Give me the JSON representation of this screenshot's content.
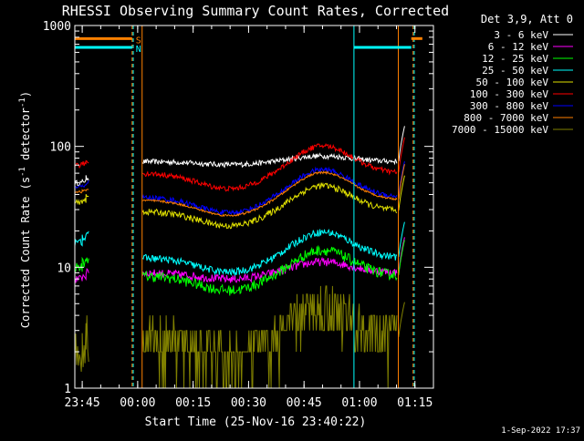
{
  "chart_data": {
    "type": "line",
    "title": "RHESSI Observing Summary Count Rates, Corrected",
    "xlabel": "Start Time (25-Nov-16 23:40:22)",
    "ylabel_main": "Corrected Count Rate (s",
    "ylabel_sup1": "-1",
    "ylabel_mid": " detector",
    "ylabel_sup2": "-1",
    "ylabel_end": ")",
    "timestamp": "1-Sep-2022 17:37",
    "y_scale": "log",
    "ylim": [
      1,
      1000
    ],
    "xlim_minutes": [
      -17,
      80
    ],
    "x_ticks": [
      {
        "label": "23:45",
        "m": -15
      },
      {
        "label": "00:00",
        "m": 0
      },
      {
        "label": "00:15",
        "m": 15
      },
      {
        "label": "00:30",
        "m": 30
      },
      {
        "label": "00:45",
        "m": 45
      },
      {
        "label": "01:00",
        "m": 60
      },
      {
        "label": "01:15",
        "m": 75
      }
    ],
    "y_ticks": [
      {
        "label": "1",
        "v": 1
      },
      {
        "label": "10",
        "v": 10
      },
      {
        "label": "100",
        "v": 100
      },
      {
        "label": "1000",
        "v": 1000
      }
    ],
    "legend_header": "Det 3,9, Att 0",
    "legend_placement": "top-right",
    "series": [
      {
        "name": "3 - 6 keV",
        "color": "#ffffff",
        "base": 75,
        "amp": 0.06,
        "noise": 0.05,
        "pre": [
          [
            -17,
            50
          ],
          [
            -15,
            52
          ],
          [
            -14,
            55
          ]
        ]
      },
      {
        "name": "6 - 12 keV",
        "color": "#ff00ff",
        "base": 9,
        "amp": 0.12,
        "noise": 0.08,
        "pre": [
          [
            -17,
            8
          ],
          [
            -15,
            8.5
          ],
          [
            -14,
            9
          ]
        ]
      },
      {
        "name": "12 - 25 keV",
        "color": "#00ff00",
        "base": 8.5,
        "amp": 0.28,
        "noise": 0.1,
        "pre": [
          [
            -17,
            10
          ],
          [
            -15,
            11
          ],
          [
            -14,
            12
          ]
        ]
      },
      {
        "name": "25 - 50 keV",
        "color": "#00ffff",
        "base": 12,
        "amp": 0.28,
        "noise": 0.07,
        "pre": [
          [
            -17,
            16
          ],
          [
            -15,
            18
          ],
          [
            -14,
            20
          ]
        ]
      },
      {
        "name": "50 - 100 keV",
        "color": "#e0e000",
        "base": 29,
        "amp": 0.28,
        "noise": 0.06,
        "pre": [
          [
            -17,
            34
          ],
          [
            -15,
            36
          ],
          [
            -14,
            38
          ]
        ]
      },
      {
        "name": "100 - 300 keV",
        "color": "#ff0000",
        "base": 60,
        "amp": 0.3,
        "noise": 0.05,
        "pre": [
          [
            -17,
            70
          ],
          [
            -15,
            72
          ],
          [
            -14,
            75
          ]
        ]
      },
      {
        "name": "300 - 800 keV",
        "color": "#0000ff",
        "base": 38,
        "amp": 0.3,
        "noise": 0.05,
        "pre": [
          [
            -17,
            46
          ],
          [
            -15,
            48
          ],
          [
            -14,
            50
          ]
        ]
      },
      {
        "name": "800 - 7000 keV",
        "color": "#ff8000",
        "base": 36,
        "amp": 0.3,
        "noise": 0.02,
        "pre": [
          [
            -17,
            42
          ],
          [
            -15,
            43
          ],
          [
            -14,
            44
          ]
        ]
      },
      {
        "name": "7000 - 15000 keV",
        "color": "#808000",
        "base": 2.6,
        "amp": 0.35,
        "noise": 0.45,
        "pre": [
          [
            -17,
            2
          ],
          [
            -15,
            2.5
          ],
          [
            -14,
            3
          ]
        ]
      }
    ],
    "flag_bars": [
      {
        "label": "S",
        "color": "#ff8000",
        "v": 780,
        "segments": [
          [
            -17,
            -1.5
          ],
          [
            74,
            77
          ]
        ]
      },
      {
        "label": "N",
        "color": "#00ffff",
        "v": 660,
        "segments": [
          [
            -17,
            -1.5
          ],
          [
            58.5,
            74
          ]
        ]
      }
    ],
    "vlines": [
      {
        "m": -1.5,
        "color": "#ff8000",
        "dashed": true
      },
      {
        "m": -1.2,
        "color": "#00ffff",
        "dashed": true
      },
      {
        "m": 1.2,
        "color": "#ff8000",
        "dashed": false
      },
      {
        "m": 58.5,
        "color": "#00ffff",
        "dashed": false
      },
      {
        "m": 70.5,
        "color": "#ff8000",
        "dashed": false
      },
      {
        "m": 74.5,
        "color": "#ff8000",
        "dashed": true
      },
      {
        "m": 74.8,
        "color": "#00ffff",
        "dashed": true
      }
    ]
  }
}
